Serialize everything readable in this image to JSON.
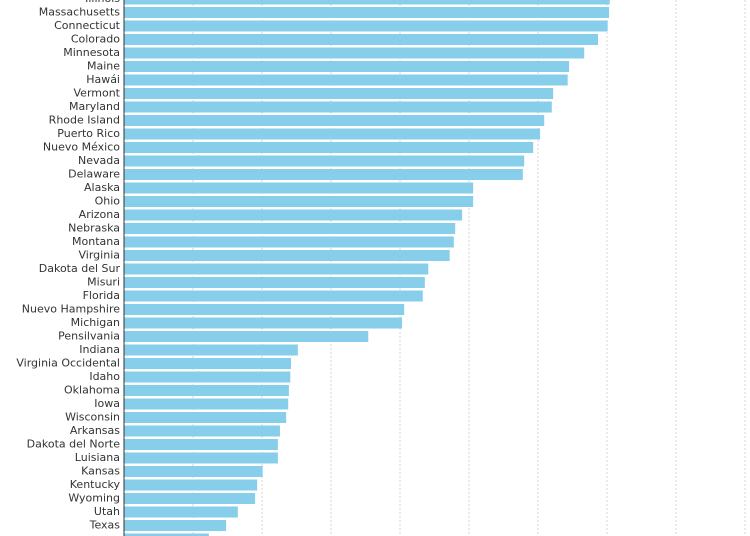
{
  "chart_data": {
    "type": "barh",
    "categories": [
      "Illinois",
      "Massachusetts",
      "Connecticut",
      "Colorado",
      "Minnesota",
      "Maine",
      "Hawái",
      "Vermont",
      "Maryland",
      "Rhode Island",
      "Puerto Rico",
      "Nuevo México",
      "Nevada",
      "Delaware",
      "Alaska",
      "Ohio",
      "Arizona",
      "Nebraska",
      "Montana",
      "Virginia",
      "Dakota del Sur",
      "Misuri",
      "Florida",
      "Nuevo Hampshire",
      "Michigan",
      "Pensilvania",
      "Indiana",
      "Virginia Occidental",
      "Idaho",
      "Oklahoma",
      "Iowa",
      "Wisconsin",
      "Arkansas",
      "Dakota del Norte",
      "Luisiana",
      "Kansas",
      "Kentucky",
      "Wyoming",
      "Utah",
      "Texas",
      null
    ],
    "values": [
      7.04,
      7.03,
      7.01,
      6.87,
      6.67,
      6.45,
      6.43,
      6.22,
      6.2,
      6.09,
      6.03,
      5.93,
      5.8,
      5.78,
      5.06,
      5.06,
      4.9,
      4.8,
      4.78,
      4.72,
      4.41,
      4.36,
      4.33,
      4.06,
      4.03,
      3.54,
      2.52,
      2.42,
      2.41,
      2.39,
      2.38,
      2.35,
      2.26,
      2.23,
      2.23,
      2.01,
      1.93,
      1.9,
      1.65,
      1.48,
      1.23
    ],
    "color": "#87ceeb",
    "xlim": [
      0,
      9
    ],
    "xticks": [
      0,
      1,
      2,
      3,
      4,
      5,
      6,
      7,
      8,
      9
    ],
    "tick_labels": false,
    "grid": true
  }
}
